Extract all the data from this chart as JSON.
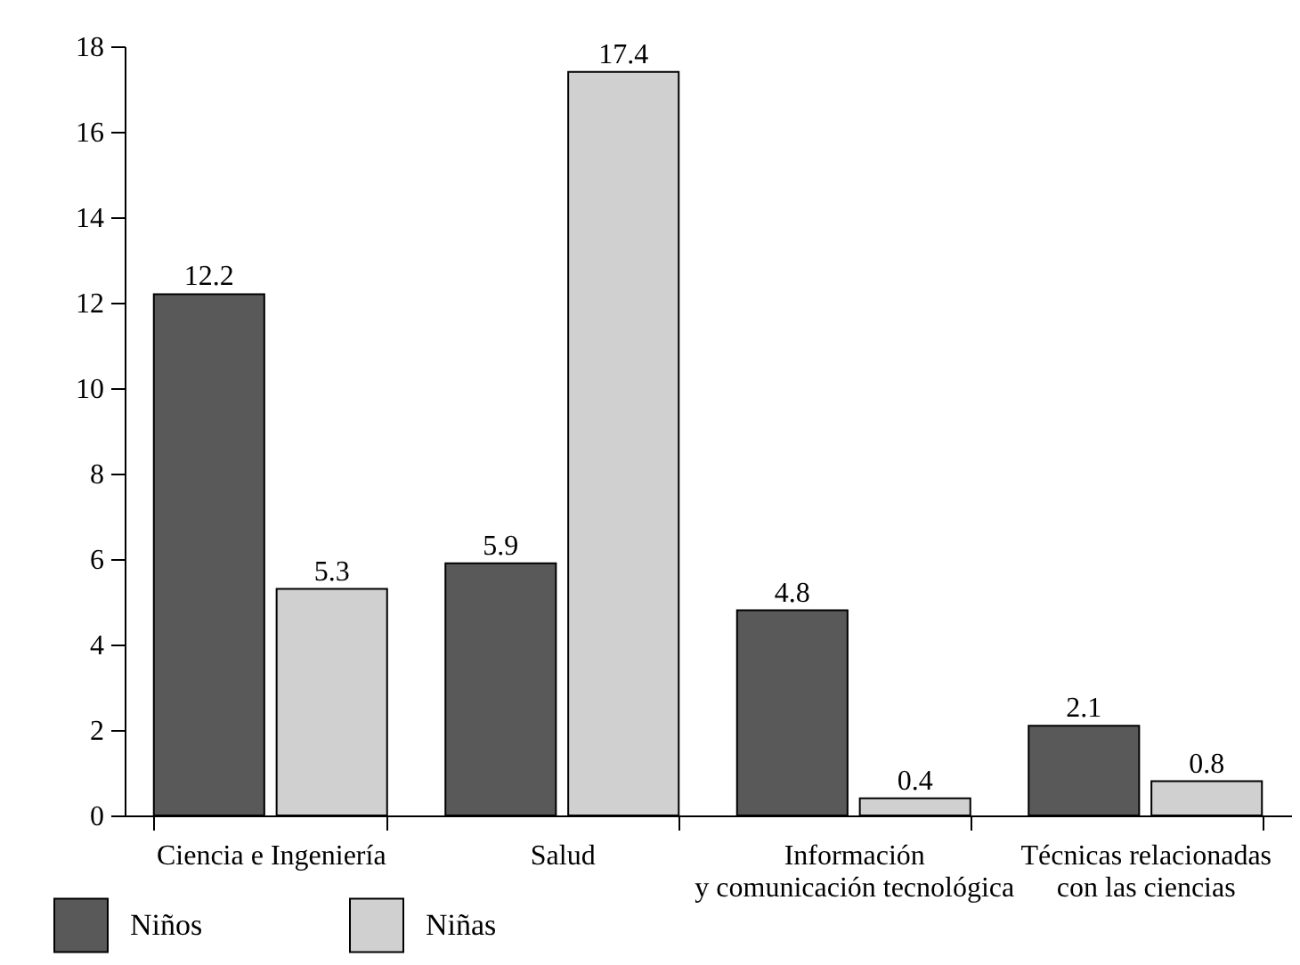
{
  "chart_data": {
    "type": "bar",
    "categories": [
      "Ciencia e Ingeniería",
      "Salud",
      "Información\ny comunicación tecnológica",
      "Técnicas relacionadas\ncon las ciencias"
    ],
    "series": [
      {
        "name": "Niños",
        "color": "#595959",
        "values": [
          12.2,
          5.9,
          4.8,
          2.1
        ]
      },
      {
        "name": "Niñas",
        "color": "#d0d0d0",
        "values": [
          5.3,
          17.4,
          0.4,
          0.8
        ]
      }
    ],
    "ylim": [
      0,
      18
    ],
    "yticks": [
      0,
      2,
      4,
      6,
      8,
      10,
      12,
      14,
      16,
      18
    ],
    "grid": false,
    "legend": "bottom left",
    "data_labels": true
  }
}
